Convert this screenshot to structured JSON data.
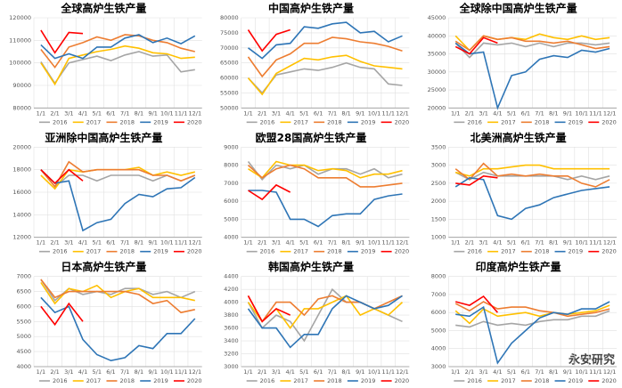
{
  "chart_data": [
    {
      "type": "line",
      "title": "全球高炉生铁产量",
      "categories": [
        "1/1",
        "2/1",
        "3/1",
        "4/1",
        "5/1",
        "6/1",
        "7/1",
        "8/1",
        "9/1",
        "10/1",
        "11/1",
        "12/1"
      ],
      "ylim": [
        80000,
        120000
      ],
      "yticks": [
        80000,
        90000,
        100000,
        110000,
        120000
      ],
      "series": [
        {
          "name": "2016",
          "color": "#a5a5a5",
          "values": [
            100500,
            91000,
            100000,
            101500,
            103000,
            101000,
            103500,
            105000,
            103000,
            103500,
            96000,
            97000
          ]
        },
        {
          "name": "2017",
          "color": "#ffc000",
          "values": [
            100000,
            90500,
            102000,
            103500,
            105000,
            106000,
            107500,
            106500,
            104500,
            104000,
            102000,
            102500
          ]
        },
        {
          "name": "2018",
          "color": "#ed7d31",
          "values": [
            106000,
            98000,
            107000,
            109000,
            111500,
            110000,
            112500,
            112000,
            110000,
            109000,
            106500,
            105000
          ]
        },
        {
          "name": "2019",
          "color": "#2e75b6",
          "values": [
            108000,
            102000,
            104000,
            102000,
            107000,
            107000,
            111000,
            112500,
            109000,
            111000,
            108500,
            112000
          ]
        },
        {
          "name": "2020",
          "color": "#ff0000",
          "values": [
            114500,
            104500,
            113500,
            113000,
            null,
            null,
            null,
            null,
            null,
            null,
            null,
            null
          ]
        }
      ]
    },
    {
      "type": "line",
      "title": "中国高炉生铁产量",
      "categories": [
        "1/1",
        "2/1",
        "3/1",
        "4/1",
        "5/1",
        "6/1",
        "7/1",
        "8/1",
        "9/1",
        "10/1",
        "11/1",
        "12/1"
      ],
      "ylim": [
        50000,
        80000
      ],
      "yticks": [
        50000,
        55000,
        60000,
        65000,
        70000,
        75000,
        80000
      ],
      "series": [
        {
          "name": "2016",
          "color": "#a5a5a5",
          "values": [
            60000,
            55000,
            61000,
            62000,
            63000,
            62500,
            63500,
            65000,
            63500,
            63000,
            58000,
            57500
          ]
        },
        {
          "name": "2017",
          "color": "#ffc000",
          "values": [
            60000,
            54500,
            61500,
            64000,
            66500,
            66000,
            67000,
            67500,
            65500,
            64000,
            63500,
            63000
          ]
        },
        {
          "name": "2018",
          "color": "#ed7d31",
          "values": [
            67000,
            60500,
            66000,
            68000,
            71500,
            71500,
            73500,
            73000,
            72000,
            71500,
            70500,
            69000
          ]
        },
        {
          "name": "2019",
          "color": "#2e75b6",
          "values": [
            70000,
            66500,
            71000,
            71500,
            77000,
            76500,
            78000,
            78500,
            75000,
            75500,
            72000,
            74000
          ]
        },
        {
          "name": "2020",
          "color": "#ff0000",
          "values": [
            76000,
            69000,
            74500,
            76000,
            null,
            null,
            null,
            null,
            null,
            null,
            null,
            null
          ]
        }
      ]
    },
    {
      "type": "line",
      "title": "全球除中国高炉生铁产量",
      "categories": [
        "1/1",
        "2/1",
        "3/1",
        "4/1",
        "5/1",
        "6/1",
        "7/1",
        "8/1",
        "9/1",
        "10/1",
        "11/1",
        "12/1"
      ],
      "ylim": [
        20000,
        45000
      ],
      "yticks": [
        20000,
        25000,
        30000,
        35000,
        40000,
        45000
      ],
      "series": [
        {
          "name": "2016",
          "color": "#a5a5a5",
          "values": [
            38000,
            34000,
            38000,
            37500,
            38000,
            37000,
            38000,
            37000,
            38000,
            38000,
            37500,
            38000
          ]
        },
        {
          "name": "2017",
          "color": "#ffc000",
          "values": [
            40000,
            36000,
            40000,
            39000,
            39500,
            39000,
            40500,
            39500,
            39000,
            40000,
            39000,
            39500
          ]
        },
        {
          "name": "2018",
          "color": "#ed7d31",
          "values": [
            38500,
            36000,
            40000,
            39000,
            39500,
            38500,
            38500,
            38000,
            38500,
            37500,
            36500,
            37000
          ]
        },
        {
          "name": "2019",
          "color": "#2e75b6",
          "values": [
            38000,
            35000,
            35500,
            20000,
            29000,
            30000,
            33500,
            34500,
            34000,
            36000,
            35500,
            36500
          ]
        },
        {
          "name": "2020",
          "color": "#ff0000",
          "values": [
            37000,
            35000,
            39500,
            38000,
            null,
            null,
            null,
            null,
            null,
            null,
            null,
            null
          ]
        }
      ]
    },
    {
      "type": "line",
      "title": "亚洲除中国高炉生铁产量",
      "categories": [
        "1/1",
        "2/1",
        "3/1",
        "4/1",
        "5/1",
        "6/1",
        "7/1",
        "8/1",
        "9/1",
        "10/1",
        "11/1",
        "12/1"
      ],
      "ylim": [
        12000,
        20000
      ],
      "yticks": [
        12000,
        14000,
        16000,
        18000,
        20000
      ],
      "series": [
        {
          "name": "2016",
          "color": "#a5a5a5",
          "values": [
            18000,
            16500,
            17500,
            17500,
            17000,
            17500,
            17500,
            17500,
            17000,
            17500,
            17000,
            17500
          ]
        },
        {
          "name": "2017",
          "color": "#ffc000",
          "values": [
            17500,
            16300,
            18000,
            17800,
            18000,
            18000,
            18000,
            18200,
            17500,
            17800,
            17500,
            17800
          ]
        },
        {
          "name": "2018",
          "color": "#ed7d31",
          "values": [
            18000,
            16500,
            18700,
            17800,
            18000,
            18000,
            18000,
            18000,
            17500,
            17500,
            17000,
            17500
          ]
        },
        {
          "name": "2019",
          "color": "#2e75b6",
          "values": [
            18000,
            16800,
            17000,
            12600,
            13300,
            13600,
            15000,
            15800,
            15600,
            16300,
            16400,
            17300
          ]
        },
        {
          "name": "2020",
          "color": "#ff0000",
          "values": [
            18000,
            16800,
            18000,
            17000,
            null,
            null,
            null,
            null,
            null,
            null,
            null,
            null
          ]
        }
      ]
    },
    {
      "type": "line",
      "title": "欧盟28国高炉生铁产量",
      "categories": [
        "1/1",
        "2/1",
        "3/1",
        "4/1",
        "5/1",
        "6/1",
        "7/1",
        "8/1",
        "9/1",
        "10/1",
        "11/1",
        "12/1"
      ],
      "ylim": [
        4000,
        9000
      ],
      "yticks": [
        4000,
        5000,
        6000,
        7000,
        8000,
        9000
      ],
      "series": [
        {
          "name": "2016",
          "color": "#a5a5a5",
          "values": [
            8200,
            7200,
            8000,
            7800,
            8000,
            7500,
            7800,
            7800,
            7500,
            7800,
            7300,
            7500
          ]
        },
        {
          "name": "2017",
          "color": "#ffc000",
          "values": [
            7800,
            7300,
            8200,
            8000,
            8000,
            7700,
            7800,
            7700,
            7300,
            7500,
            7500,
            7700
          ]
        },
        {
          "name": "2018",
          "color": "#ed7d31",
          "values": [
            8000,
            7300,
            7800,
            8000,
            7800,
            7300,
            7300,
            7300,
            6800,
            6800,
            6900,
            7000
          ]
        },
        {
          "name": "2019",
          "color": "#2e75b6",
          "values": [
            6600,
            6600,
            6500,
            5000,
            5000,
            4600,
            5200,
            5300,
            5300,
            6100,
            6300,
            6400
          ]
        },
        {
          "name": "2020",
          "color": "#ff0000",
          "values": [
            6600,
            6100,
            6900,
            6500,
            null,
            null,
            null,
            null,
            null,
            null,
            null,
            null
          ]
        }
      ]
    },
    {
      "type": "line",
      "title": "北美洲高炉生铁产量",
      "categories": [
        "1/1",
        "2/1",
        "3/1",
        "4/1",
        "5/1",
        "6/1",
        "7/1",
        "8/1",
        "9/1",
        "10/1",
        "11/1",
        "12/1"
      ],
      "ylim": [
        1000,
        3500
      ],
      "yticks": [
        1000,
        1500,
        2000,
        2500,
        3000,
        3500
      ],
      "series": [
        {
          "name": "2016",
          "color": "#a5a5a5",
          "values": [
            2800,
            2600,
            2800,
            2700,
            2700,
            2700,
            2700,
            2700,
            2600,
            2700,
            2600,
            2700
          ]
        },
        {
          "name": "2017",
          "color": "#ffc000",
          "values": [
            2800,
            2700,
            2900,
            2900,
            2950,
            3000,
            3000,
            2900,
            2900,
            2900,
            2900,
            2900
          ]
        },
        {
          "name": "2018",
          "color": "#ed7d31",
          "values": [
            2900,
            2600,
            3050,
            2700,
            2750,
            2700,
            2750,
            2700,
            2700,
            2500,
            2400,
            2600
          ]
        },
        {
          "name": "2019",
          "color": "#2e75b6",
          "values": [
            2400,
            2650,
            2600,
            1600,
            1500,
            1800,
            1900,
            2100,
            2200,
            2300,
            2350,
            2400
          ]
        },
        {
          "name": "2020",
          "color": "#ff0000",
          "values": [
            2500,
            2450,
            2700,
            2650,
            null,
            null,
            null,
            null,
            null,
            null,
            null,
            null
          ]
        }
      ]
    },
    {
      "type": "line",
      "title": "日本高炉生铁产量",
      "categories": [
        "1/1",
        "2/1",
        "3/1",
        "4/1",
        "5/1",
        "6/1",
        "7/1",
        "8/1",
        "9/1",
        "10/1",
        "11/1",
        "12/1"
      ],
      "ylim": [
        4000,
        7000
      ],
      "yticks": [
        4000,
        4500,
        5000,
        5500,
        6000,
        6500,
        7000
      ],
      "series": [
        {
          "name": "2016",
          "color": "#a5a5a5",
          "values": [
            6900,
            6200,
            6600,
            6400,
            6500,
            6400,
            6600,
            6600,
            6400,
            6500,
            6300,
            6500
          ]
        },
        {
          "name": "2017",
          "color": "#ffc000",
          "values": [
            6800,
            6100,
            6600,
            6500,
            6700,
            6300,
            6500,
            6600,
            6300,
            6300,
            6300,
            6200
          ]
        },
        {
          "name": "2018",
          "color": "#ed7d31",
          "values": [
            6900,
            6300,
            6500,
            6500,
            6500,
            6500,
            6500,
            6400,
            6100,
            6200,
            5800,
            5900
          ]
        },
        {
          "name": "2019",
          "color": "#2e75b6",
          "values": [
            6300,
            5800,
            6000,
            4900,
            4400,
            4200,
            4300,
            4700,
            4600,
            5100,
            5100,
            5600
          ]
        },
        {
          "name": "2020",
          "color": "#ff0000",
          "values": [
            6000,
            5400,
            6100,
            5500,
            null,
            null,
            null,
            null,
            null,
            null,
            null,
            null
          ]
        }
      ]
    },
    {
      "type": "line",
      "title": "韩国高炉生铁产量",
      "categories": [
        "1/1",
        "2/1",
        "3/1",
        "4/1",
        "5/1",
        "6/1",
        "7/1",
        "8/1",
        "9/1",
        "10/1",
        "11/1",
        "12/1"
      ],
      "ylim": [
        3000,
        4400
      ],
      "yticks": [
        3000,
        3200,
        3400,
        3600,
        3800,
        4000,
        4200,
        4400
      ],
      "series": [
        {
          "name": "2016",
          "color": "#a5a5a5",
          "values": [
            4000,
            3600,
            3800,
            3700,
            3400,
            3800,
            4200,
            4000,
            4000,
            3900,
            3800,
            3700
          ]
        },
        {
          "name": "2017",
          "color": "#ffc000",
          "values": [
            4000,
            3700,
            3900,
            3600,
            3900,
            3900,
            4000,
            4100,
            3800,
            3900,
            3800,
            4000
          ]
        },
        {
          "name": "2018",
          "color": "#ed7d31",
          "values": [
            4100,
            3700,
            4000,
            4000,
            3800,
            4050,
            4100,
            4000,
            4000,
            3900,
            4000,
            4100
          ]
        },
        {
          "name": "2019",
          "color": "#2e75b6",
          "values": [
            3900,
            3600,
            3600,
            3300,
            3500,
            3500,
            3900,
            4100,
            4000,
            3900,
            3950,
            4100
          ]
        },
        {
          "name": "2020",
          "color": "#ff0000",
          "values": [
            4100,
            3700,
            3900,
            3800,
            null,
            null,
            null,
            null,
            null,
            null,
            null,
            null
          ]
        }
      ]
    },
    {
      "type": "line",
      "title": "印度高炉生铁产量",
      "categories": [
        "1/1",
        "2/1",
        "3/1",
        "4/1",
        "5/1",
        "6/1",
        "7/1",
        "8/1",
        "9/1",
        "10/1",
        "11/1",
        "12/1"
      ],
      "ylim": [
        3000,
        8000
      ],
      "yticks": [
        3000,
        4000,
        5000,
        6000,
        7000,
        8000
      ],
      "series": [
        {
          "name": "2016",
          "color": "#a5a5a5",
          "values": [
            5300,
            5200,
            5500,
            5300,
            5400,
            5300,
            5500,
            5600,
            5600,
            5800,
            5800,
            6100
          ]
        },
        {
          "name": "2017",
          "color": "#ffc000",
          "values": [
            6100,
            5400,
            6200,
            5800,
            5900,
            6000,
            5800,
            6000,
            5900,
            6000,
            6100,
            6400
          ]
        },
        {
          "name": "2018",
          "color": "#ed7d31",
          "values": [
            6500,
            6100,
            6600,
            6200,
            6300,
            6300,
            6100,
            6000,
            5800,
            5900,
            6000,
            6200
          ]
        },
        {
          "name": "2019",
          "color": "#2e75b6",
          "values": [
            5900,
            5800,
            6300,
            3200,
            4300,
            5000,
            5700,
            6000,
            5900,
            6200,
            6200,
            6600
          ]
        },
        {
          "name": "2020",
          "color": "#ff0000",
          "values": [
            6600,
            6400,
            6900,
            6000,
            null,
            null,
            null,
            null,
            null,
            null,
            null,
            null
          ]
        }
      ]
    }
  ],
  "watermark": "永安研究"
}
